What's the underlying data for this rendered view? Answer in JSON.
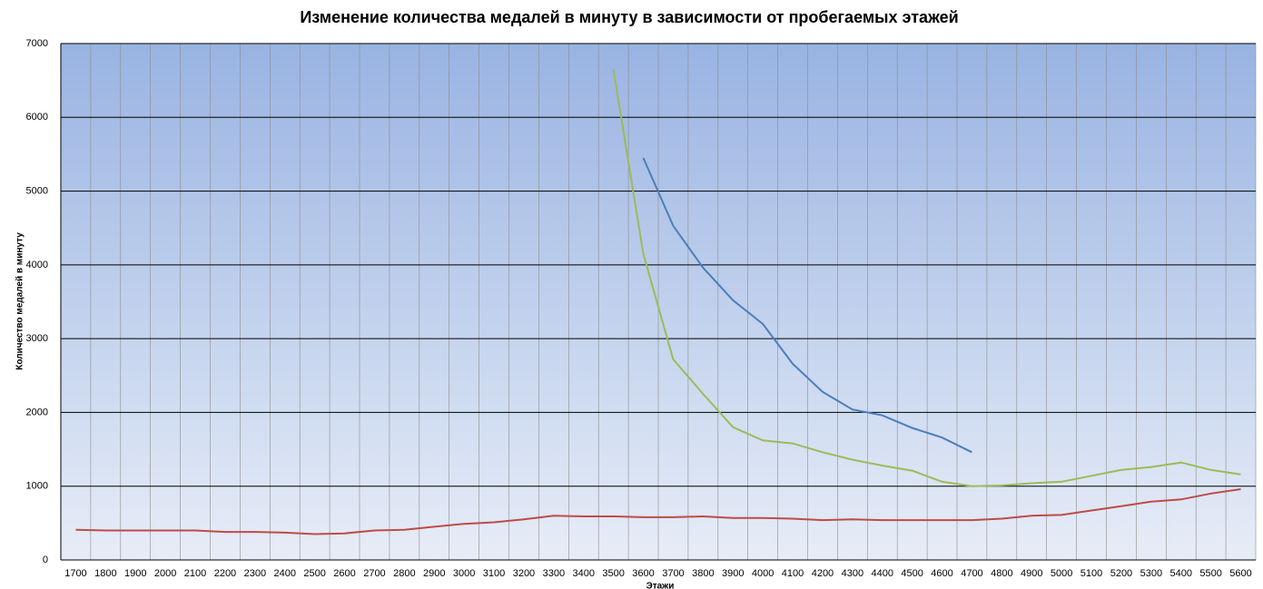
{
  "chart_data": {
    "type": "line",
    "title": "Изменение количества медалей в минуту в зависимости от пробегаемых этажей",
    "x_label": "Этажи",
    "y_label": "Количество медалей в минуту",
    "categories": [
      "1700",
      "1800",
      "1900",
      "2000",
      "2100",
      "2200",
      "2300",
      "2400",
      "2500",
      "2600",
      "2700",
      "2800",
      "2900",
      "3000",
      "3100",
      "3200",
      "3300",
      "3400",
      "3500",
      "3600",
      "3700",
      "3800",
      "3900",
      "4000",
      "4100",
      "4200",
      "4300",
      "4400",
      "4500",
      "4600",
      "4700",
      "4800",
      "4900",
      "5000",
      "5100",
      "5200",
      "5300",
      "5400",
      "5500",
      "5600"
    ],
    "series": [
      {
        "color": "#be4b48",
        "values": [
          410,
          400,
          400,
          400,
          400,
          380,
          380,
          370,
          350,
          360,
          400,
          410,
          450,
          490,
          510,
          550,
          600,
          590,
          590,
          580,
          580,
          590,
          570,
          570,
          560,
          540,
          550,
          540,
          540,
          540,
          540,
          560,
          600,
          610,
          670,
          730,
          790,
          820,
          900,
          960
        ]
      },
      {
        "color": "#9bbb59",
        "values": [
          null,
          null,
          null,
          null,
          null,
          null,
          null,
          null,
          null,
          null,
          null,
          null,
          null,
          null,
          null,
          null,
          null,
          null,
          6650,
          4150,
          2720,
          2250,
          1800,
          1620,
          1580,
          1460,
          1360,
          1280,
          1210,
          1060,
          1000,
          1010,
          1040,
          1060,
          1140,
          1220,
          1260,
          1320,
          1220,
          1160
        ]
      },
      {
        "color": "#4a7ebb",
        "values": [
          null,
          null,
          null,
          null,
          null,
          null,
          null,
          null,
          null,
          null,
          null,
          null,
          null,
          null,
          null,
          null,
          null,
          null,
          null,
          5450,
          4530,
          3960,
          3520,
          3200,
          2660,
          2280,
          2040,
          1960,
          1790,
          1660,
          1460,
          null,
          null,
          null,
          null,
          null,
          null,
          null,
          null,
          null
        ]
      }
    ],
    "ylim": [
      0,
      7000
    ],
    "yticks": [
      0,
      1000,
      2000,
      3000,
      4000,
      5000,
      6000,
      7000
    ],
    "grid": true
  }
}
